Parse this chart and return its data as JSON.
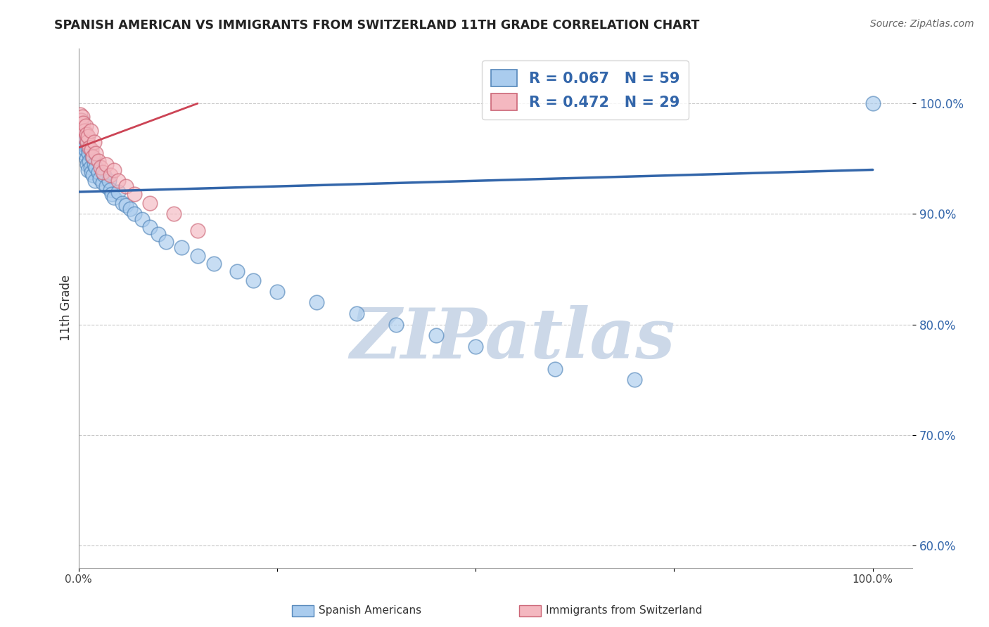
{
  "title": "SPANISH AMERICAN VS IMMIGRANTS FROM SWITZERLAND 11TH GRADE CORRELATION CHART",
  "source": "Source: ZipAtlas.com",
  "ylabel": "11th Grade",
  "blue_R": 0.067,
  "blue_N": 59,
  "pink_R": 0.472,
  "pink_N": 29,
  "blue_color": "#aaccee",
  "pink_color": "#f4b8c0",
  "blue_edge_color": "#5588bb",
  "pink_edge_color": "#cc6677",
  "blue_line_color": "#3366aa",
  "pink_line_color": "#cc4455",
  "legend_blue_label": "Spanish Americans",
  "legend_pink_label": "Immigrants from Switzerland",
  "blue_scatter_x": [
    0.002,
    0.003,
    0.004,
    0.004,
    0.005,
    0.006,
    0.006,
    0.007,
    0.007,
    0.008,
    0.008,
    0.009,
    0.01,
    0.01,
    0.011,
    0.011,
    0.012,
    0.012,
    0.013,
    0.014,
    0.015,
    0.016,
    0.017,
    0.018,
    0.02,
    0.021,
    0.022,
    0.025,
    0.027,
    0.03,
    0.032,
    0.035,
    0.038,
    0.04,
    0.042,
    0.045,
    0.05,
    0.055,
    0.06,
    0.065,
    0.07,
    0.08,
    0.09,
    0.1,
    0.11,
    0.13,
    0.15,
    0.17,
    0.2,
    0.22,
    0.25,
    0.3,
    0.35,
    0.4,
    0.45,
    0.5,
    0.6,
    0.7,
    1.0
  ],
  "blue_scatter_y": [
    0.98,
    0.975,
    0.97,
    0.985,
    0.965,
    0.96,
    0.975,
    0.968,
    0.955,
    0.972,
    0.962,
    0.958,
    0.97,
    0.95,
    0.965,
    0.945,
    0.96,
    0.94,
    0.955,
    0.948,
    0.942,
    0.938,
    0.952,
    0.935,
    0.945,
    0.93,
    0.942,
    0.938,
    0.932,
    0.928,
    0.935,
    0.925,
    0.93,
    0.922,
    0.918,
    0.915,
    0.92,
    0.91,
    0.908,
    0.905,
    0.9,
    0.895,
    0.888,
    0.882,
    0.875,
    0.87,
    0.862,
    0.855,
    0.848,
    0.84,
    0.83,
    0.82,
    0.81,
    0.8,
    0.79,
    0.78,
    0.76,
    0.75,
    1.0
  ],
  "pink_scatter_x": [
    0.002,
    0.003,
    0.004,
    0.005,
    0.006,
    0.007,
    0.008,
    0.009,
    0.01,
    0.011,
    0.012,
    0.014,
    0.015,
    0.016,
    0.018,
    0.02,
    0.022,
    0.025,
    0.028,
    0.03,
    0.035,
    0.04,
    0.045,
    0.05,
    0.06,
    0.07,
    0.09,
    0.12,
    0.15
  ],
  "pink_scatter_y": [
    0.99,
    0.985,
    0.978,
    0.988,
    0.982,
    0.975,
    0.968,
    0.98,
    0.972,
    0.965,
    0.97,
    0.96,
    0.975,
    0.958,
    0.952,
    0.965,
    0.955,
    0.948,
    0.942,
    0.938,
    0.945,
    0.935,
    0.94,
    0.93,
    0.925,
    0.918,
    0.91,
    0.9,
    0.885
  ],
  "blue_trend_x": [
    0.0,
    1.0
  ],
  "blue_trend_y": [
    0.92,
    0.94
  ],
  "pink_trend_x": [
    0.0,
    0.15
  ],
  "pink_trend_y": [
    0.96,
    1.0
  ],
  "ytick_positions": [
    0.6,
    0.7,
    0.8,
    0.9,
    1.0
  ],
  "ytick_labels": [
    "60.0%",
    "70.0%",
    "80.0%",
    "90.0%",
    "100.0%"
  ],
  "xtick_left_label": "0.0%",
  "xtick_right_label": "100.0%",
  "xlim": [
    0.0,
    1.05
  ],
  "ylim": [
    0.58,
    1.05
  ],
  "grid_color": "#bbbbbb",
  "watermark_text": "ZIPatlas",
  "watermark_color": "#ccd8e8"
}
